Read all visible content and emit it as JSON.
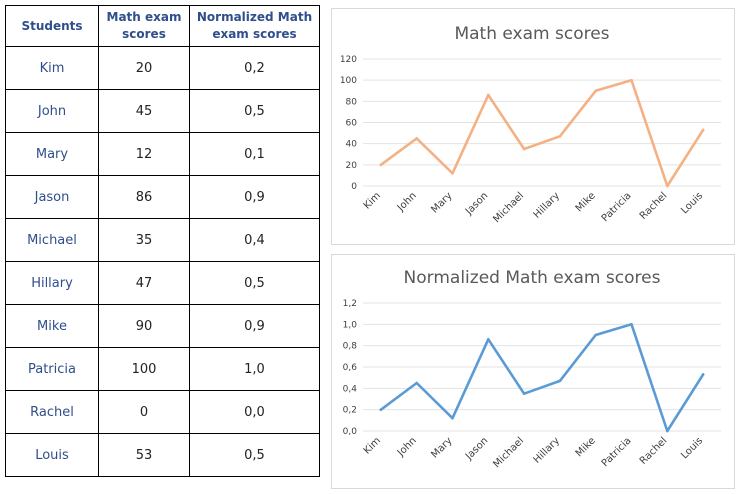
{
  "table": {
    "headers": [
      "Students",
      "Math exam scores",
      "Normalized Math exam scores"
    ],
    "rows": [
      {
        "student": "Kim",
        "score": "20",
        "normalized": "0,2"
      },
      {
        "student": "John",
        "score": "45",
        "normalized": "0,5"
      },
      {
        "student": "Mary",
        "score": "12",
        "normalized": "0,1"
      },
      {
        "student": "Jason",
        "score": "86",
        "normalized": "0,9"
      },
      {
        "student": "Michael",
        "score": "35",
        "normalized": "0,4"
      },
      {
        "student": "Hillary",
        "score": "47",
        "normalized": "0,5"
      },
      {
        "student": "Mike",
        "score": "90",
        "normalized": "0,9"
      },
      {
        "student": "Patricia",
        "score": "100",
        "normalized": "1,0"
      },
      {
        "student": "Rachel",
        "score": "0",
        "normalized": "0,0"
      },
      {
        "student": "Louis",
        "score": "53",
        "normalized": "0,5"
      }
    ]
  },
  "chart_data": [
    {
      "type": "line",
      "title": "Math exam scores",
      "categories": [
        "Kim",
        "John",
        "Mary",
        "Jason",
        "Michael",
        "Hillary",
        "Mike",
        "Patricia",
        "Rachel",
        "Louis"
      ],
      "series": [
        {
          "values": [
            20,
            45,
            12,
            86,
            35,
            47,
            90,
            100,
            0,
            53
          ]
        }
      ],
      "ylim": [
        0,
        120
      ],
      "yticks": [
        "0",
        "20",
        "40",
        "60",
        "80",
        "100",
        "120"
      ],
      "grid": true,
      "legend": "none",
      "color": "#F4B183"
    },
    {
      "type": "line",
      "title": "Normalized Math exam scores",
      "categories": [
        "Kim",
        "John",
        "Mary",
        "Jason",
        "Michael",
        "Hillary",
        "Mike",
        "Patricia",
        "Rachel",
        "Louis"
      ],
      "series": [
        {
          "values": [
            0.2,
            0.45,
            0.12,
            0.86,
            0.35,
            0.47,
            0.9,
            1.0,
            0.0,
            0.53
          ]
        }
      ],
      "ylim": [
        0,
        1.2
      ],
      "yticks": [
        "0,0",
        "0,2",
        "0,4",
        "0,6",
        "0,8",
        "1,0",
        "1,2"
      ],
      "grid": true,
      "legend": "none",
      "color": "#5B9BD5"
    }
  ]
}
